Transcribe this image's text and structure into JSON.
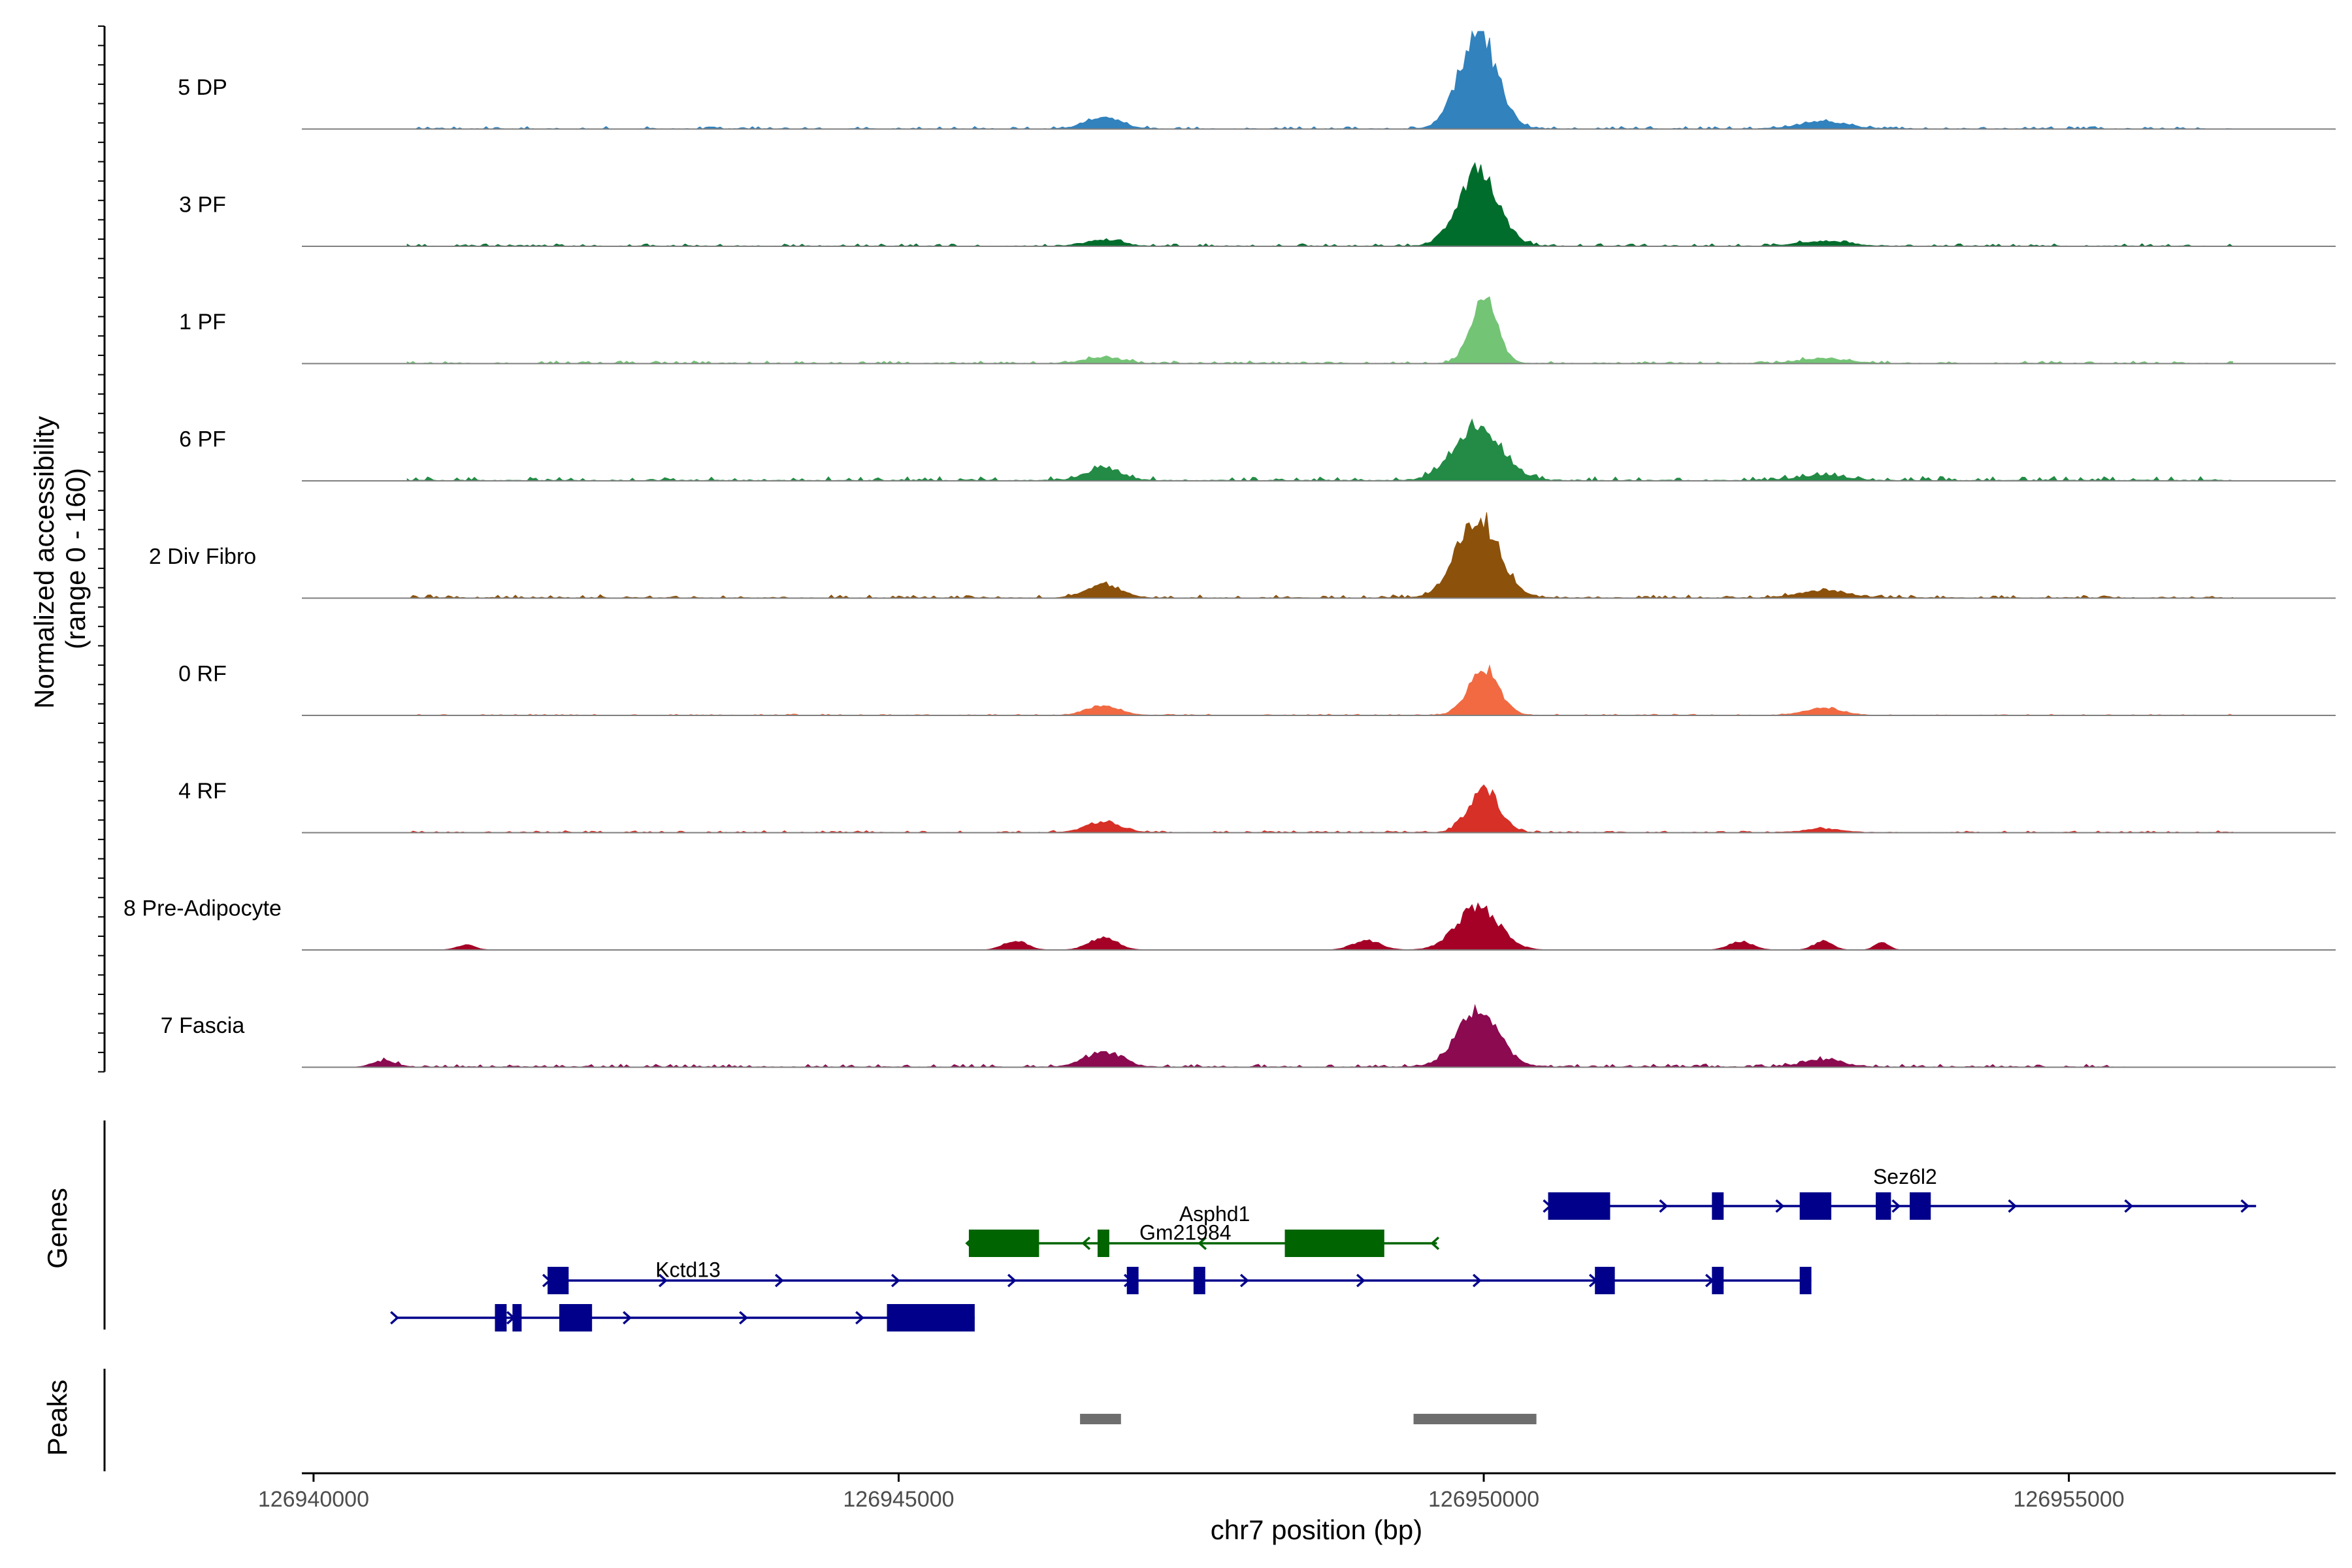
{
  "chart_data": {
    "type": "area",
    "ylabel_line1": "Normalized accessibility",
    "ylabel_line2": "(range 0 - 160)",
    "xlabel": "chr7 position (bp)",
    "ylim": [
      0,
      160
    ],
    "xlim": [
      126939900,
      126957280
    ],
    "x_ticks": [
      {
        "value": 126940000,
        "label": "126940000"
      },
      {
        "value": 126945000,
        "label": "126945000"
      },
      {
        "value": 126950000,
        "label": "126950000"
      },
      {
        "value": 126955000,
        "label": "126955000"
      }
    ],
    "genes_label": "Genes",
    "peaks_label": "Peaks",
    "series": [
      {
        "name": "5 DP",
        "color": "#3182bd",
        "peaks": [
          [
            126946750,
            150,
            18
          ],
          [
            126949950,
            160,
            155
          ],
          [
            126952900,
            200,
            12
          ]
        ],
        "noise": [
          126940800,
          126956400,
          4
        ]
      },
      {
        "name": "3 PF",
        "color": "#006d2c",
        "peaks": [
          [
            126946750,
            150,
            10
          ],
          [
            126949950,
            170,
            120
          ],
          [
            126952900,
            200,
            8
          ]
        ],
        "noise": [
          126940800,
          126956400,
          4
        ]
      },
      {
        "name": "1 PF",
        "color": "#74c476",
        "peaks": [
          [
            126946750,
            150,
            10
          ],
          [
            126950000,
            110,
            110
          ],
          [
            126952900,
            200,
            8
          ]
        ],
        "noise": [
          126940800,
          126956400,
          4
        ]
      },
      {
        "name": "6 PF",
        "color": "#238b45",
        "peaks": [
          [
            126946750,
            150,
            20
          ],
          [
            126949950,
            200,
            90
          ],
          [
            126952900,
            200,
            8
          ]
        ],
        "noise": [
          126940800,
          126956400,
          7
        ]
      },
      {
        "name": "2 Div Fibro",
        "color": "#8c510a",
        "peaks": [
          [
            126946750,
            150,
            22
          ],
          [
            126949950,
            180,
            130
          ],
          [
            126952900,
            200,
            12
          ]
        ],
        "noise": [
          126940800,
          126956400,
          5
        ]
      },
      {
        "name": "0 RF",
        "color": "#f16a42",
        "peaks": [
          [
            126946750,
            140,
            16
          ],
          [
            126950000,
            130,
            75
          ],
          [
            126952900,
            160,
            12
          ]
        ],
        "noise": [
          126940800,
          126956400,
          2
        ]
      },
      {
        "name": "4 RF",
        "color": "#d73027",
        "peaks": [
          [
            126946750,
            150,
            16
          ],
          [
            126950000,
            130,
            70
          ],
          [
            126952900,
            160,
            6
          ]
        ],
        "noise": [
          126940800,
          126956400,
          3
        ]
      },
      {
        "name": "8 Pre-Adipocyte",
        "color": "#a50026",
        "peaks": [
          [
            126949950,
            180,
            70
          ],
          [
            126946750,
            120,
            20
          ],
          [
            126946000,
            100,
            15
          ],
          [
            126949000,
            120,
            15
          ],
          [
            126952200,
            100,
            14
          ],
          [
            126952900,
            80,
            14
          ],
          [
            126953400,
            60,
            12
          ],
          [
            126941300,
            80,
            8
          ]
        ],
        "noise": [
          126941000,
          126954000,
          0
        ]
      },
      {
        "name": "7 Fascia",
        "color": "#8b0a50",
        "peaks": [
          [
            126946750,
            150,
            25
          ],
          [
            126949950,
            180,
            90
          ],
          [
            126952900,
            160,
            12
          ],
          [
            126940600,
            100,
            10
          ]
        ],
        "noise": [
          126940600,
          126955500,
          5
        ]
      }
    ],
    "genes": [
      {
        "name": "Asphd1",
        "color": "#006400",
        "row": 0,
        "start": 126945600,
        "end": 126949600,
        "strand": "-",
        "exons": [
          [
            126945600,
            126946200
          ],
          [
            126946700,
            126946800
          ],
          [
            126948300,
            126949150
          ]
        ],
        "label_x": 126947700,
        "label_row": 0
      },
      {
        "name": "Sez6l2",
        "color": "#00008b",
        "row": -1,
        "start": 126950550,
        "end": 126956600,
        "strand": "+",
        "exons": [
          [
            126950550,
            126951080
          ],
          [
            126951950,
            126952050
          ],
          [
            126952700,
            126952970
          ],
          [
            126953350,
            126953480
          ],
          [
            126953640,
            126953820
          ]
        ],
        "label_x": 126953600,
        "label_row": -1
      },
      {
        "name": "Gm21984",
        "color": "#00008b",
        "row": 1,
        "start": 126942000,
        "end": 126952800,
        "strand": "+",
        "exons": [
          [
            126942000,
            126942180
          ],
          [
            126946950,
            126947050
          ],
          [
            126947520,
            126947620
          ],
          [
            126950950,
            126951120
          ],
          [
            126951950,
            126952050
          ],
          [
            126952700,
            126952800
          ]
        ],
        "label_x": 126947450,
        "label_row": 0.5
      },
      {
        "name": "Kctd13",
        "color": "#00008b",
        "row": 2,
        "start": 126940700,
        "end": 126945650,
        "strand": "+",
        "exons": [
          [
            126941550,
            126941650
          ],
          [
            126941700,
            126941760
          ],
          [
            126942100,
            126942380
          ],
          [
            126944900,
            126945650
          ]
        ],
        "label_x": 126943200,
        "label_row": 1.5
      }
    ],
    "peak_regions": [
      [
        126946550,
        126946900
      ],
      [
        126949400,
        126950450
      ]
    ]
  }
}
